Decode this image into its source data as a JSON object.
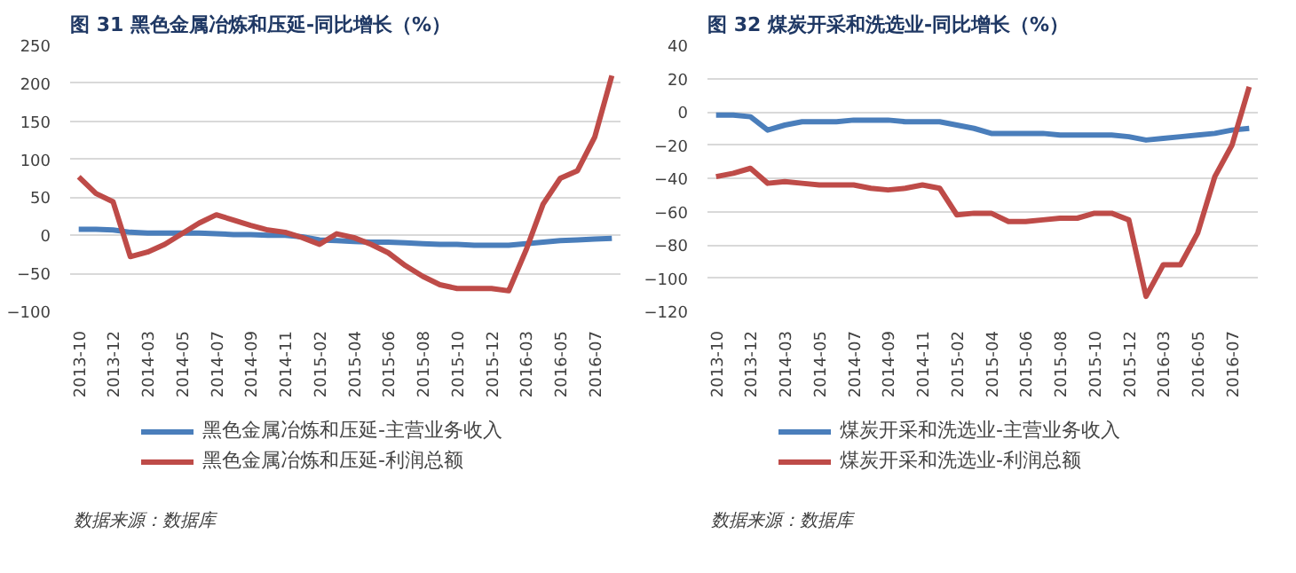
{
  "chart_data": [
    {
      "type": "line",
      "title": "图 31 黑色金属冶炼和压延-同比增长（%）",
      "categories": [
        "2013-10",
        null,
        "2013-12",
        null,
        "2014-03",
        null,
        "2014-05",
        null,
        "2014-07",
        null,
        "2014-09",
        null,
        "2014-11",
        null,
        "2015-02",
        null,
        "2015-04",
        null,
        "2015-06",
        null,
        "2015-08",
        null,
        "2015-10",
        null,
        "2015-12",
        null,
        "2016-03",
        null,
        "2016-05",
        null,
        "2016-07",
        null
      ],
      "series": [
        {
          "name": "黑色金属冶炼和压延-主营业务收入",
          "color": "#4a7ebb",
          "values": [
            8,
            8,
            7,
            4,
            3,
            3,
            3,
            3,
            2,
            1,
            1,
            0,
            0,
            -2,
            -6,
            -7,
            -8,
            -9,
            -9,
            -10,
            -11,
            -12,
            -12,
            -13,
            -13,
            -13,
            -11,
            -9,
            -7,
            -6,
            -5,
            -4
          ]
        },
        {
          "name": "黑色金属冶炼和压延-利润总额",
          "color": "#be4b48",
          "values": [
            77,
            55,
            44,
            -28,
            -22,
            -12,
            2,
            16,
            27,
            20,
            13,
            7,
            4,
            -3,
            -12,
            2,
            -3,
            -12,
            -23,
            -40,
            -54,
            -65,
            -70,
            -70,
            -70,
            -73,
            -20,
            41,
            75,
            85,
            129,
            210
          ]
        }
      ],
      "ylim": [
        -100,
        250
      ],
      "yticks": [
        -100,
        -50,
        0,
        50,
        100,
        150,
        200,
        250
      ],
      "grid": "y",
      "legend": "bottom",
      "line_style": "solid",
      "annotations": [
        "数据来源：数据库"
      ]
    },
    {
      "type": "line",
      "title": "图 32 煤炭开采和洗选业-同比增长（%）",
      "categories": [
        "2013-10",
        null,
        "2013-12",
        null,
        "2014-03",
        null,
        "2014-05",
        null,
        "2014-07",
        null,
        "2014-09",
        null,
        "2014-11",
        null,
        "2015-02",
        null,
        "2015-04",
        null,
        "2015-06",
        null,
        "2015-08",
        null,
        "2015-10",
        null,
        "2015-12",
        null,
        "2016-03",
        null,
        "2016-05",
        null,
        "2016-07",
        null
      ],
      "series": [
        {
          "name": "煤炭开采和洗选业-主营业务收入",
          "color": "#4a7ebb",
          "values": [
            -2,
            -2,
            -3,
            -11,
            -8,
            -6,
            -6,
            -6,
            -5,
            -5,
            -5,
            -6,
            -6,
            -6,
            -8,
            -10,
            -13,
            -13,
            -13,
            -13,
            -14,
            -14,
            -14,
            -14,
            -15,
            -17,
            -16,
            -15,
            -14,
            -13,
            -11,
            -10
          ]
        },
        {
          "name": "煤炭开采和洗选业-利润总额",
          "color": "#be4b48",
          "values": [
            -39,
            -37,
            -34,
            -43,
            -42,
            -43,
            -44,
            -44,
            -44,
            -46,
            -47,
            -46,
            -44,
            -46,
            -62,
            -61,
            -61,
            -66,
            -66,
            -65,
            -64,
            -64,
            -61,
            -61,
            -65,
            -111,
            -92,
            -92,
            -73,
            -39,
            -20,
            15
          ]
        }
      ],
      "ylim": [
        -120,
        40
      ],
      "yticks": [
        -120,
        -100,
        -80,
        -60,
        -40,
        -20,
        0,
        20,
        40
      ],
      "grid": "y",
      "legend": "bottom",
      "line_style": "solid",
      "annotations": [
        "数据来源：数据库"
      ]
    }
  ]
}
